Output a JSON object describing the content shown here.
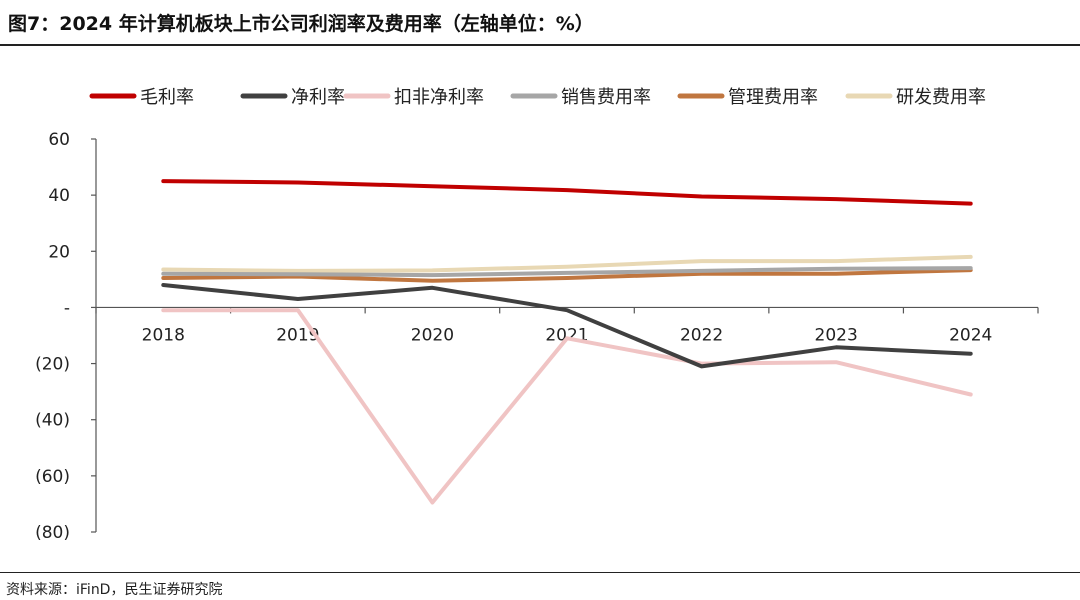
{
  "header": {
    "title": "图7：2024 年计算机板块上市公司利润率及费用率（左轴单位：%）"
  },
  "footer": {
    "source": "资料来源：iFinD，民生证券研究院"
  },
  "chart_data": {
    "type": "line",
    "title": "图7：2024 年计算机板块上市公司利润率及费用率（左轴单位：%）",
    "xlabel": "",
    "ylabel": "",
    "categories": [
      "2018",
      "2019",
      "2020",
      "2021",
      "2022",
      "2023",
      "2024"
    ],
    "ylim": [
      -80,
      60
    ],
    "yticks": [
      60,
      40,
      20,
      0,
      -20,
      -40,
      -60,
      -80
    ],
    "ytick_labels": [
      "60",
      "40",
      "20",
      "-",
      "(20)",
      "(40)",
      "(60)",
      "(80)"
    ],
    "grid": false,
    "legend_position": "top",
    "series": [
      {
        "name": "毛利率",
        "color": "#c00000",
        "values": [
          45.0,
          44.5,
          43.2,
          41.8,
          39.5,
          38.6,
          37.0
        ]
      },
      {
        "name": "净利率",
        "color": "#404040",
        "values": [
          8.0,
          3.0,
          7.0,
          -1.0,
          -21.0,
          -14.2,
          -16.5
        ]
      },
      {
        "name": "扣非净利率",
        "color": "#f0c4c4",
        "values": [
          -1.0,
          -1.0,
          -69.5,
          -11.0,
          -20.0,
          -19.5,
          -31.0
        ]
      },
      {
        "name": "销售费用率",
        "color": "#a6a6a6",
        "values": [
          12.0,
          11.8,
          11.5,
          12.3,
          13.0,
          13.8,
          14.0
        ]
      },
      {
        "name": "管理费用率",
        "color": "#c0763f",
        "values": [
          10.5,
          11.0,
          9.5,
          10.5,
          12.0,
          12.0,
          13.3
        ]
      },
      {
        "name": "研发费用率",
        "color": "#e8d8b4",
        "values": [
          13.5,
          13.0,
          13.2,
          14.5,
          16.5,
          16.5,
          18.0
        ]
      }
    ]
  }
}
